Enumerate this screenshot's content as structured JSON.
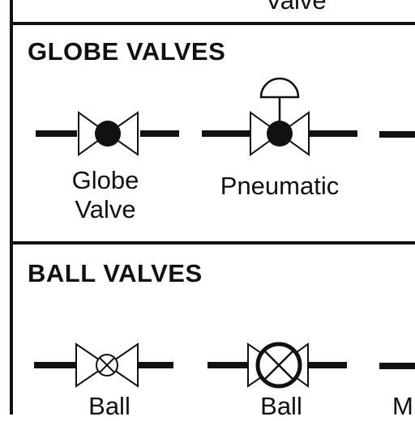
{
  "top_section": {
    "caption_fragment": "Valve"
  },
  "globe_section": {
    "heading": "GLOBE VALVES",
    "symbols": [
      {
        "caption_line1": "Globe",
        "caption_line2": "Valve",
        "icon": "globe-valve-symbol"
      },
      {
        "caption": "Pneumatic",
        "icon": "pneumatic-globe-valve-symbol"
      }
    ]
  },
  "ball_section": {
    "heading": "BALL VALVES",
    "symbols": [
      {
        "caption_line1": "Ball",
        "icon": "ball-valve-symbol"
      },
      {
        "caption_line1": "Ball",
        "icon": "ball-valve-large-symbol"
      }
    ],
    "partial_caption": "M"
  }
}
